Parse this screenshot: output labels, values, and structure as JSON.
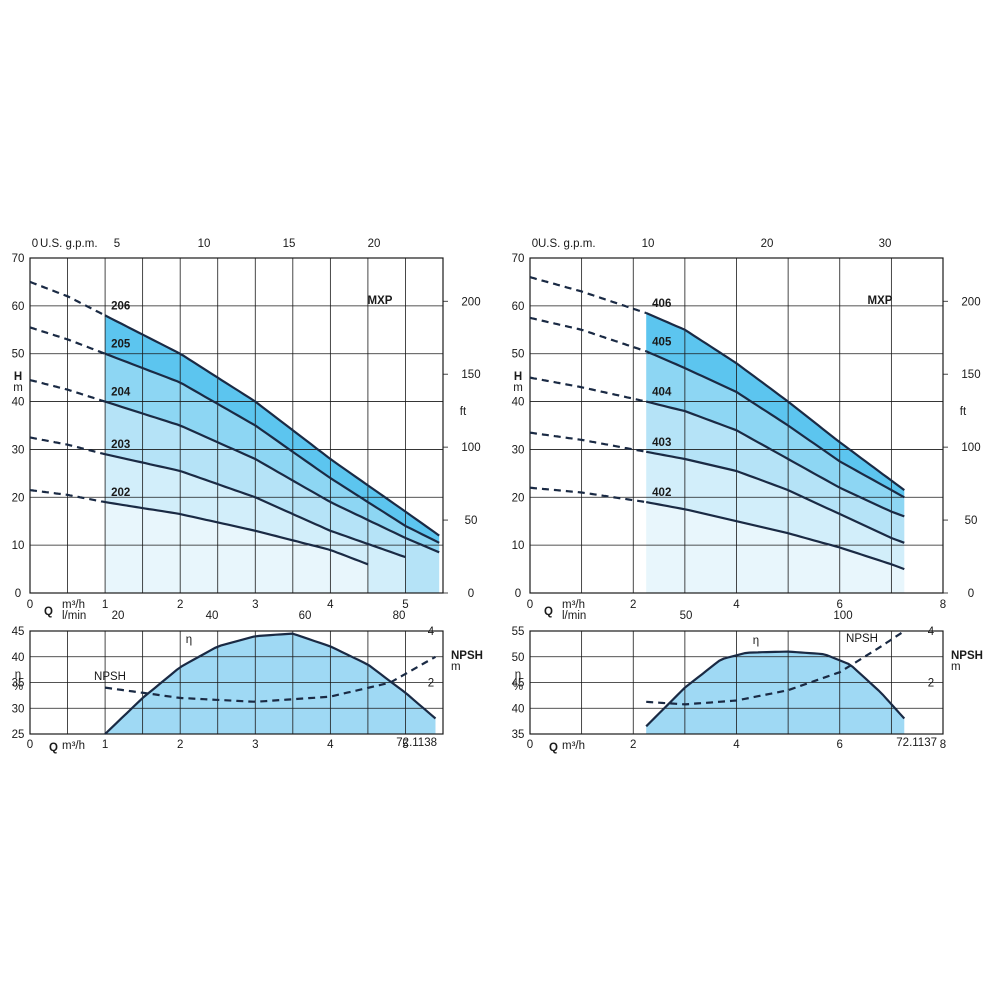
{
  "chart_data": [
    {
      "type": "line",
      "panel": "left-head",
      "title": "MXP",
      "ylabel_main": "H",
      "ylabel_unit": "m",
      "y2label": "ft",
      "top_axis_label": "U.S. g.p.m.",
      "bottom_axis_label_q": "Q",
      "bottom_axis_label_unit1": "m³/h",
      "bottom_axis_label_unit2": "l/min",
      "xlim": [
        0,
        5.5
      ],
      "ylim": [
        0,
        70
      ],
      "x_ticks": [
        "0",
        "1",
        "2",
        "3",
        "4",
        "5"
      ],
      "y_ticks": [
        "0",
        "10",
        "20",
        "30",
        "40",
        "50",
        "60",
        "70"
      ],
      "y2_ticks": [
        "0",
        "50",
        "100",
        "150",
        "200"
      ],
      "top_ticks": [
        "0",
        "5",
        "10",
        "15",
        "20"
      ],
      "lmin_ticks": [
        "20",
        "40",
        "60",
        "80"
      ],
      "operating_range_start": 1,
      "series": [
        {
          "name": "206",
          "points": [
            [
              0,
              65
            ],
            [
              0.5,
              62
            ],
            [
              1,
              58
            ],
            [
              2,
              50
            ],
            [
              3,
              40
            ],
            [
              4,
              28
            ],
            [
              5,
              17
            ],
            [
              5.45,
              12
            ]
          ],
          "end": 5.45
        },
        {
          "name": "205",
          "points": [
            [
              0,
              55.5
            ],
            [
              0.5,
              53
            ],
            [
              1,
              50
            ],
            [
              2,
              44
            ],
            [
              3,
              35
            ],
            [
              4,
              24
            ],
            [
              5,
              14
            ],
            [
              5.45,
              10.5
            ]
          ],
          "end": 5.45
        },
        {
          "name": "204",
          "points": [
            [
              0,
              44.5
            ],
            [
              0.5,
              42.5
            ],
            [
              1,
              40
            ],
            [
              2,
              35
            ],
            [
              3,
              28
            ],
            [
              4,
              19
            ],
            [
              5,
              11.5
            ],
            [
              5.45,
              8.5
            ]
          ],
          "end": 5.45
        },
        {
          "name": "203",
          "points": [
            [
              0,
              32.5
            ],
            [
              0.5,
              31
            ],
            [
              1,
              29
            ],
            [
              2,
              25.5
            ],
            [
              3,
              20
            ],
            [
              4,
              13
            ],
            [
              5,
              7.5
            ]
          ],
          "end": 5.0
        },
        {
          "name": "202",
          "points": [
            [
              0,
              21.5
            ],
            [
              0.5,
              20.5
            ],
            [
              1,
              19
            ],
            [
              2,
              16.5
            ],
            [
              3,
              13
            ],
            [
              4,
              9
            ],
            [
              4.5,
              6
            ]
          ],
          "end": 4.5
        }
      ]
    },
    {
      "type": "line",
      "panel": "left-efficiency",
      "ylabel_main": "η",
      "ylabel_unit": "%",
      "y2label_main": "NPSH",
      "y2label_unit": "m",
      "xlabel_q": "Q",
      "xlabel_unit": "m³/h",
      "xlim": [
        0,
        5.5
      ],
      "ylim": [
        25,
        45
      ],
      "x_ticks": [
        "0",
        "1",
        "2",
        "3",
        "4",
        "5"
      ],
      "y_ticks": [
        "25",
        "30",
        "35",
        "40",
        "45"
      ],
      "y2_ticks": [
        "2",
        "4"
      ],
      "eta_label": "η",
      "npsh_label": "NPSH",
      "code": "72.1138",
      "eta_points": [
        [
          1,
          25
        ],
        [
          1.5,
          32
        ],
        [
          2,
          38
        ],
        [
          2.5,
          42
        ],
        [
          3,
          44
        ],
        [
          3.5,
          44.5
        ],
        [
          4,
          42
        ],
        [
          4.5,
          38.5
        ],
        [
          5,
          33
        ],
        [
          5.4,
          28
        ]
      ],
      "npsh_points": [
        [
          1,
          1.8
        ],
        [
          2,
          1.4
        ],
        [
          3,
          1.25
        ],
        [
          4,
          1.45
        ],
        [
          4.8,
          2
        ],
        [
          5.4,
          3
        ]
      ]
    },
    {
      "type": "line",
      "panel": "right-head",
      "title": "MXP",
      "ylabel_main": "H",
      "ylabel_unit": "m",
      "y2label": "ft",
      "top_axis_label": "U.S. g.p.m.",
      "bottom_axis_label_q": "Q",
      "bottom_axis_label_unit1": "m³/h",
      "bottom_axis_label_unit2": "l/min",
      "xlim": [
        0,
        8
      ],
      "ylim": [
        0,
        70
      ],
      "x_ticks": [
        "0",
        "2",
        "4",
        "6",
        "8"
      ],
      "y_ticks": [
        "0",
        "10",
        "20",
        "30",
        "40",
        "50",
        "60",
        "70"
      ],
      "y2_ticks": [
        "0",
        "50",
        "100",
        "150",
        "200"
      ],
      "top_ticks": [
        "0",
        "10",
        "20",
        "30"
      ],
      "lmin_ticks": [
        "50",
        "100"
      ],
      "operating_range_start": 2.25,
      "series": [
        {
          "name": "406",
          "points": [
            [
              0,
              66
            ],
            [
              1,
              63
            ],
            [
              2.25,
              58.5
            ],
            [
              3,
              55
            ],
            [
              4,
              48
            ],
            [
              5,
              40
            ],
            [
              6,
              31.5
            ],
            [
              7,
              23.5
            ],
            [
              7.25,
              21.5
            ]
          ],
          "end": 7.25
        },
        {
          "name": "405",
          "points": [
            [
              0,
              57.5
            ],
            [
              1,
              55
            ],
            [
              2.25,
              50.5
            ],
            [
              3,
              47
            ],
            [
              4,
              42
            ],
            [
              5,
              35
            ],
            [
              6,
              27.5
            ],
            [
              7,
              21.5
            ],
            [
              7.25,
              20
            ]
          ],
          "end": 7.25
        },
        {
          "name": "404",
          "points": [
            [
              0,
              45
            ],
            [
              1,
              43
            ],
            [
              2.25,
              40
            ],
            [
              3,
              38
            ],
            [
              4,
              34
            ],
            [
              5,
              28
            ],
            [
              6,
              22
            ],
            [
              7,
              17
            ],
            [
              7.25,
              16
            ]
          ],
          "end": 7.25
        },
        {
          "name": "403",
          "points": [
            [
              0,
              33.5
            ],
            [
              1,
              32
            ],
            [
              2.25,
              29.5
            ],
            [
              3,
              28
            ],
            [
              4,
              25.5
            ],
            [
              5,
              21.5
            ],
            [
              6,
              16.5
            ],
            [
              7,
              11.5
            ],
            [
              7.25,
              10.5
            ]
          ],
          "end": 7.25
        },
        {
          "name": "402",
          "points": [
            [
              0,
              22
            ],
            [
              1,
              21
            ],
            [
              2.25,
              19
            ],
            [
              3,
              17.5
            ],
            [
              4,
              15
            ],
            [
              5,
              12.5
            ],
            [
              6,
              9.5
            ],
            [
              7,
              6
            ],
            [
              7.25,
              5
            ]
          ],
          "end": 7.25
        }
      ]
    },
    {
      "type": "line",
      "panel": "right-efficiency",
      "ylabel_main": "η",
      "ylabel_unit": "%",
      "y2label_main": "NPSH",
      "y2label_unit": "m",
      "xlabel_q": "Q",
      "xlabel_unit": "m³/h",
      "xlim": [
        0,
        8
      ],
      "ylim": [
        35,
        55
      ],
      "x_ticks": [
        "0",
        "2",
        "4",
        "6",
        "8"
      ],
      "y_ticks": [
        "35",
        "40",
        "45",
        "50",
        "55"
      ],
      "y2_ticks": [
        "2",
        "4"
      ],
      "eta_label": "η",
      "npsh_label": "NPSH",
      "code": "72.1137",
      "eta_points": [
        [
          2.25,
          36.5
        ],
        [
          3,
          44
        ],
        [
          3.7,
          49.5
        ],
        [
          4.2,
          50.8
        ],
        [
          5,
          51
        ],
        [
          5.7,
          50.5
        ],
        [
          6.2,
          48.5
        ],
        [
          6.8,
          43
        ],
        [
          7.25,
          38
        ]
      ],
      "npsh_points": [
        [
          2.25,
          1.25
        ],
        [
          3,
          1.15
        ],
        [
          4,
          1.3
        ],
        [
          5,
          1.7
        ],
        [
          6,
          2.4
        ],
        [
          6.8,
          3.4
        ],
        [
          7.25,
          4
        ]
      ]
    }
  ]
}
